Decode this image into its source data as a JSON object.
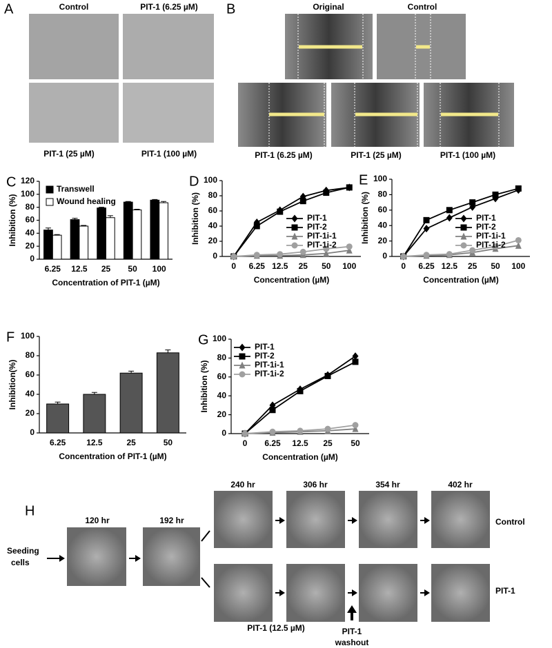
{
  "panels": {
    "A": {
      "letter": "A",
      "labels": [
        "Control",
        "PIT-1 (6.25 µM)",
        "PIT-1 (25 µM)",
        "PIT-1 (100 µM)"
      ]
    },
    "B": {
      "letter": "B",
      "labels": [
        "Original",
        "Control",
        "PIT-1 (6.25 µM)",
        "PIT-1 (25 µM)",
        "PIT-1 (100 µM)"
      ]
    },
    "H": {
      "letter": "H",
      "times": [
        "120 hr",
        "192 hr",
        "240 hr",
        "306 hr",
        "354 hr",
        "402 hr"
      ],
      "start": [
        "Seeding",
        "cells"
      ],
      "rows": [
        "Control",
        "PIT-1"
      ],
      "treatment": "PIT-1 (12.5 µM)",
      "washout": [
        "PIT-1",
        "washout"
      ]
    }
  },
  "chart_data": [
    {
      "type": "bar",
      "panel": "C",
      "xlabel": "Concentration of PIT-1 (µM)",
      "ylabel": "Inhibition (%)",
      "categories": [
        "6.25",
        "12.5",
        "25",
        "50",
        "100"
      ],
      "series": [
        {
          "name": "Transwell",
          "color": "#000000",
          "values": [
            45,
            61,
            79,
            88,
            91
          ],
          "errors": [
            3,
            2,
            1,
            1,
            1
          ]
        },
        {
          "name": "Wound healing",
          "color": "#ffffff",
          "values": [
            37,
            51,
            64,
            76,
            87
          ],
          "errors": [
            1,
            1,
            3,
            1,
            2
          ]
        }
      ],
      "ylim": [
        0,
        120
      ],
      "yticks": [
        0,
        20,
        40,
        60,
        80,
        100,
        120
      ],
      "legend": "upper left"
    },
    {
      "type": "line",
      "panel": "D",
      "xlabel": "Concentration (µM)",
      "ylabel": "Inhibition (%)",
      "categories": [
        "0",
        "6.25",
        "12.5",
        "25",
        "50",
        "100"
      ],
      "series": [
        {
          "name": "PIT-1",
          "color": "#000000",
          "marker": "diamond",
          "values": [
            0,
            45,
            61,
            79,
            87,
            91
          ]
        },
        {
          "name": "PIT-2",
          "color": "#000000",
          "marker": "square",
          "values": [
            0,
            40,
            59,
            73,
            84,
            91
          ]
        },
        {
          "name": "PIT-1i-1",
          "color": "#808080",
          "marker": "triangle",
          "values": [
            0,
            1,
            1,
            2,
            4,
            8
          ]
        },
        {
          "name": "PIT-1i-2",
          "color": "#a0a0a0",
          "marker": "circle",
          "values": [
            0,
            2,
            3,
            6,
            10,
            13
          ]
        }
      ],
      "ylim": [
        0,
        100
      ],
      "yticks": [
        0,
        20,
        40,
        60,
        80,
        100
      ],
      "legend": "lower right"
    },
    {
      "type": "line",
      "panel": "E",
      "xlabel": "Concentration (µM)",
      "ylabel": "Inhibition (%)",
      "categories": [
        "0",
        "6.25",
        "12.5",
        "25",
        "50",
        "100"
      ],
      "series": [
        {
          "name": "PIT-1",
          "color": "#000000",
          "marker": "diamond",
          "values": [
            0,
            36,
            50,
            64,
            75,
            86
          ]
        },
        {
          "name": "PIT-2",
          "color": "#000000",
          "marker": "square",
          "values": [
            0,
            47,
            60,
            70,
            80,
            88
          ]
        },
        {
          "name": "PIT-1i-1",
          "color": "#808080",
          "marker": "triangle",
          "values": [
            0,
            1,
            2,
            5,
            10,
            14
          ]
        },
        {
          "name": "PIT-1i-2",
          "color": "#a0a0a0",
          "marker": "circle",
          "values": [
            0,
            2,
            3,
            8,
            13,
            21
          ]
        }
      ],
      "ylim": [
        0,
        100
      ],
      "yticks": [
        0,
        20,
        40,
        60,
        80,
        100
      ],
      "legend": "lower right"
    },
    {
      "type": "bar",
      "panel": "F",
      "xlabel": "Concentration of PIT-1 (µM)",
      "ylabel": "Inhibition(%)",
      "categories": [
        "6.25",
        "12.5",
        "25",
        "50"
      ],
      "series": [
        {
          "color": "#555555",
          "values": [
            30,
            40,
            62,
            83
          ],
          "errors": [
            2,
            2,
            2,
            3
          ]
        }
      ],
      "ylim": [
        0,
        100
      ],
      "yticks": [
        0,
        20,
        40,
        60,
        80,
        100
      ]
    },
    {
      "type": "line",
      "panel": "G",
      "xlabel": "Concentration (µM)",
      "ylabel": "Inhibition (%)",
      "categories": [
        "0",
        "6.25",
        "12.5",
        "25",
        "50"
      ],
      "series": [
        {
          "name": "PIT-1",
          "color": "#000000",
          "marker": "diamond",
          "values": [
            0,
            30,
            47,
            62,
            82
          ]
        },
        {
          "name": "PIT-2",
          "color": "#000000",
          "marker": "square",
          "values": [
            0,
            25,
            45,
            61,
            76
          ]
        },
        {
          "name": "PIT-1i-1",
          "color": "#808080",
          "marker": "triangle",
          "values": [
            0,
            1,
            2,
            3,
            5
          ]
        },
        {
          "name": "PIT-1i-2",
          "color": "#a0a0a0",
          "marker": "circle",
          "values": [
            0,
            2,
            3,
            5,
            9
          ]
        }
      ],
      "ylim": [
        0,
        100
      ],
      "yticks": [
        0,
        20,
        40,
        60,
        80,
        100
      ],
      "legend": "upper left"
    }
  ]
}
